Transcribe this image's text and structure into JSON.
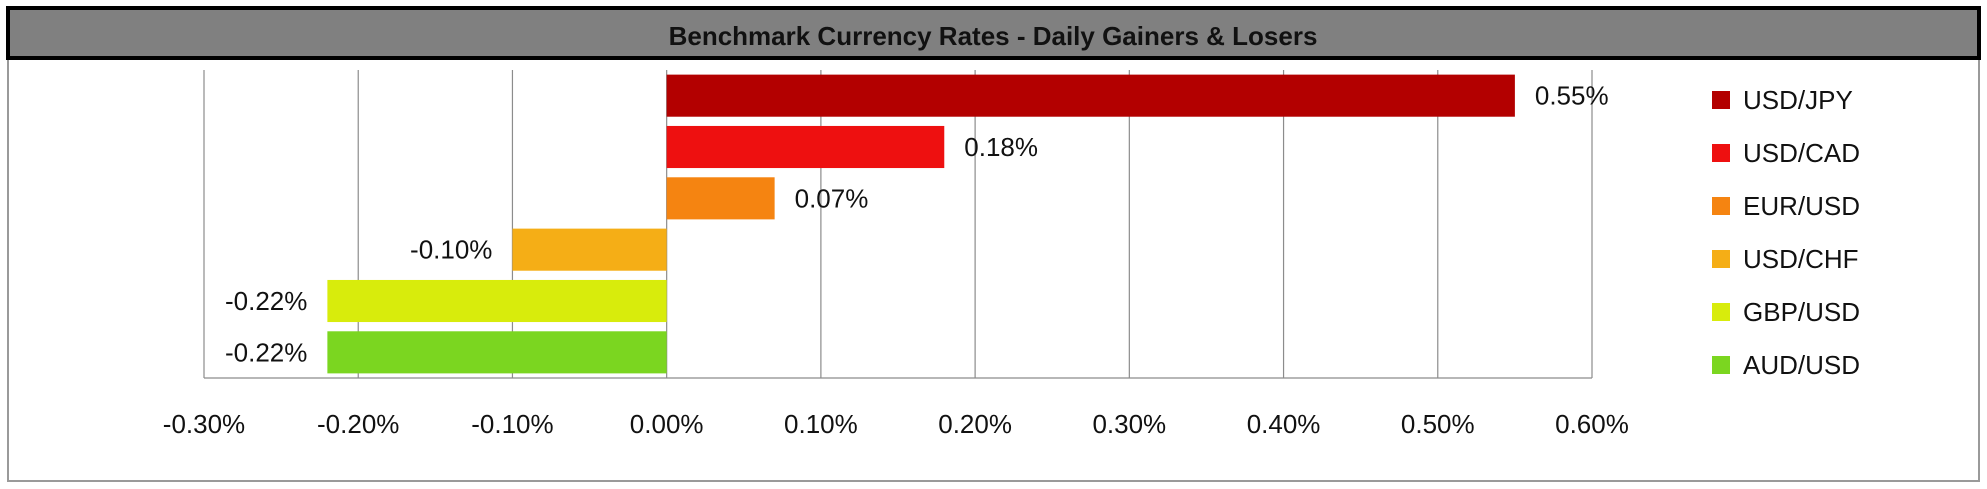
{
  "chart_data": {
    "type": "bar",
    "orientation": "horizontal",
    "title": "Benchmark Currency Rates - Daily Gainers & Losers",
    "categories": [
      "USD/JPY",
      "USD/CAD",
      "EUR/USD",
      "USD/CHF",
      "GBP/USD",
      "AUD/USD"
    ],
    "values": [
      0.55,
      0.18,
      0.07,
      -0.1,
      -0.22,
      -0.22
    ],
    "data_labels": [
      "0.55%",
      "0.18%",
      "0.07%",
      "-0.10%",
      "-0.22%",
      "-0.22%"
    ],
    "colors": [
      "#B30000",
      "#EE1010",
      "#F58411",
      "#F5AE16",
      "#D8EC0C",
      "#7BD620"
    ],
    "xlim": [
      -0.3,
      0.6
    ],
    "x_ticks": [
      -0.3,
      -0.2,
      -0.1,
      0.0,
      0.1,
      0.2,
      0.3,
      0.4,
      0.5,
      0.6
    ],
    "x_tick_labels": [
      "-0.30%",
      "-0.20%",
      "-0.10%",
      "0.00%",
      "0.10%",
      "0.20%",
      "0.30%",
      "0.40%",
      "0.50%",
      "0.60%"
    ],
    "xlabel": "",
    "ylabel": "",
    "grid": "vertical",
    "legend_position": "right",
    "title_bar_color": "#808080"
  }
}
